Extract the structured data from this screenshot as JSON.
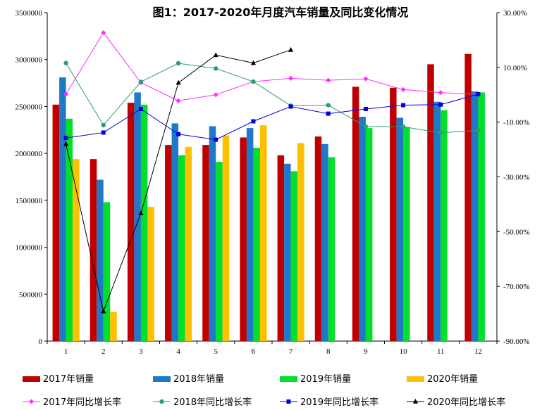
{
  "chart_data": {
    "type": "bar",
    "title": "图1：2017-2020年月度汽车销量及同比变化情况",
    "categories": [
      "1",
      "2",
      "3",
      "4",
      "5",
      "6",
      "7",
      "8",
      "9",
      "10",
      "11",
      "12"
    ],
    "xlabel": "",
    "ylabel": "",
    "ylim": [
      0,
      3500000
    ],
    "y_ticks": [
      "0",
      "500000",
      "1000000",
      "1500000",
      "2000000",
      "2500000",
      "3000000",
      "3500000"
    ],
    "y2lim": [
      -90,
      30
    ],
    "y2_ticks": [
      "-90.00%",
      "-70.00%",
      "-50.00%",
      "-30.00%",
      "-10.00%",
      "10.00%",
      "30.00%"
    ],
    "grid": false,
    "legend_position": "bottom",
    "bar_series": [
      {
        "name": "2017年销量",
        "color": "#C00000",
        "values": [
          2520000,
          1940000,
          2540000,
          2090000,
          2090000,
          2170000,
          1980000,
          2180000,
          2710000,
          2700000,
          2950000,
          3060000
        ]
      },
      {
        "name": "2018年销量",
        "color": "#1F78C8",
        "values": [
          2810000,
          1720000,
          2650000,
          2320000,
          2290000,
          2270000,
          1890000,
          2100000,
          2390000,
          2380000,
          2550000,
          2660000
        ]
      },
      {
        "name": "2019年销量",
        "color": "#00E02B",
        "values": [
          2370000,
          1480000,
          2520000,
          1980000,
          1910000,
          2060000,
          1810000,
          1960000,
          2270000,
          2280000,
          2460000,
          2650000
        ]
      },
      {
        "name": "2020年销量",
        "color": "#FFC000",
        "values": [
          1940000,
          310000,
          1430000,
          2070000,
          2190000,
          2300000,
          2110000,
          null,
          null,
          null,
          null,
          null
        ]
      }
    ],
    "line_series": [
      {
        "name": "2017年同比增长率",
        "color": "#FF2BFF",
        "marker": "diamond",
        "values": [
          0.2,
          22.7,
          4.4,
          -2.2,
          0.0,
          4.8,
          6.0,
          5.3,
          5.8,
          1.9,
          0.8,
          0.2
        ]
      },
      {
        "name": "2018年同比增长率",
        "color": "#2E9E6E",
        "marker": "circle",
        "values": [
          11.6,
          -11.1,
          4.7,
          11.5,
          9.6,
          4.8,
          -4.0,
          -3.8,
          -11.6,
          -11.7,
          -13.9,
          -13.0
        ]
      },
      {
        "name": "2019年同比增长率",
        "color": "#0000E0",
        "marker": "square",
        "values": [
          -15.8,
          -13.8,
          -5.2,
          -14.4,
          -16.4,
          -9.7,
          -4.3,
          -6.9,
          -5.2,
          -3.8,
          -3.6,
          0.2
        ]
      },
      {
        "name": "2020年同比增长率",
        "color": "#000000",
        "marker": "triangle",
        "values": [
          -18.0,
          -79.1,
          -43.3,
          4.4,
          14.5,
          11.6,
          16.4,
          null,
          null,
          null,
          null,
          null
        ]
      }
    ]
  }
}
